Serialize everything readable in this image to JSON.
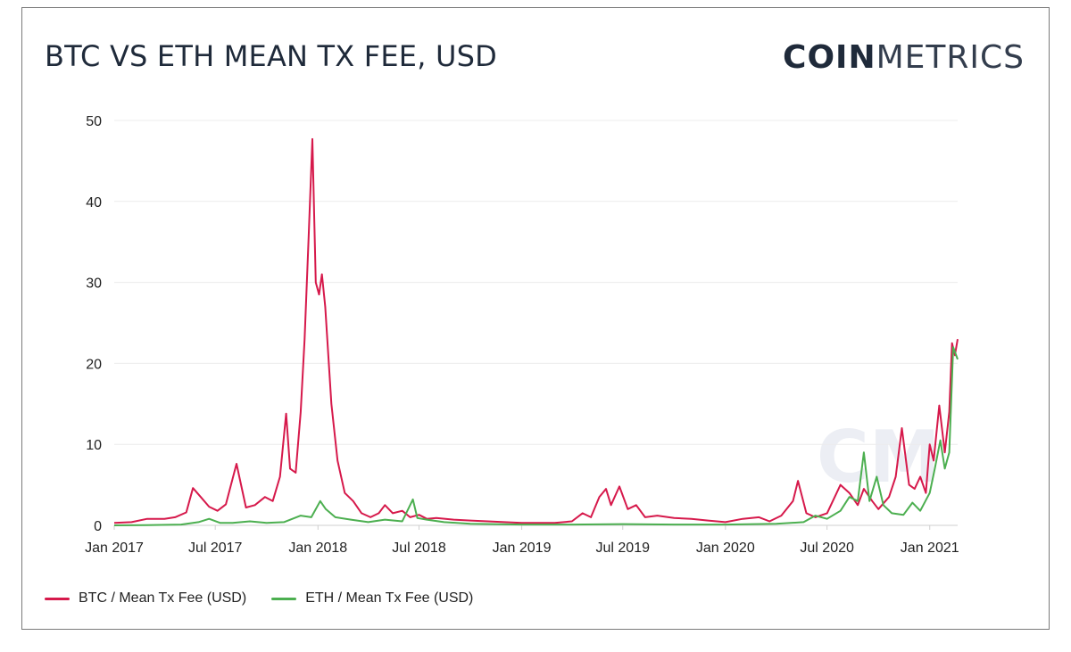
{
  "header": {
    "title": "BTC VS ETH MEAN TX FEE, USD"
  },
  "logo": {
    "bold": "COIN",
    "light": "METRICS"
  },
  "chart_data": {
    "type": "line",
    "title": "BTC VS ETH MEAN TX FEE, USD",
    "xlabel": "",
    "ylabel": "",
    "ylim": [
      0,
      50
    ],
    "xlim": [
      "2017-01-01",
      "2021-02-20"
    ],
    "yticks": [
      0,
      10,
      20,
      30,
      40,
      50
    ],
    "xticks": [
      {
        "date": "2017-01-01",
        "label": "Jan 2017"
      },
      {
        "date": "2017-07-01",
        "label": "Jul 2017"
      },
      {
        "date": "2018-01-01",
        "label": "Jan 2018"
      },
      {
        "date": "2018-07-01",
        "label": "Jul 2018"
      },
      {
        "date": "2019-01-01",
        "label": "Jan 2019"
      },
      {
        "date": "2019-07-01",
        "label": "Jul 2019"
      },
      {
        "date": "2020-01-01",
        "label": "Jan 2020"
      },
      {
        "date": "2020-07-01",
        "label": "Jul 2020"
      },
      {
        "date": "2021-01-01",
        "label": "Jan 2021"
      }
    ],
    "grid": "horizontal",
    "legend_position": "bottom-left",
    "series": [
      {
        "name": "BTC / Mean Tx Fee (USD)",
        "color": "#d6194b",
        "points": [
          [
            "2017-01-01",
            0.3
          ],
          [
            "2017-02-01",
            0.4
          ],
          [
            "2017-03-01",
            0.8
          ],
          [
            "2017-04-01",
            0.8
          ],
          [
            "2017-04-20",
            1.0
          ],
          [
            "2017-05-10",
            1.6
          ],
          [
            "2017-05-22",
            4.6
          ],
          [
            "2017-06-05",
            3.5
          ],
          [
            "2017-06-20",
            2.3
          ],
          [
            "2017-07-05",
            1.8
          ],
          [
            "2017-07-20",
            2.6
          ],
          [
            "2017-08-08",
            7.6
          ],
          [
            "2017-08-25",
            2.2
          ],
          [
            "2017-09-10",
            2.5
          ],
          [
            "2017-09-28",
            3.5
          ],
          [
            "2017-10-12",
            3.0
          ],
          [
            "2017-10-25",
            6.0
          ],
          [
            "2017-11-05",
            13.8
          ],
          [
            "2017-11-12",
            7.0
          ],
          [
            "2017-11-22",
            6.5
          ],
          [
            "2017-12-01",
            14.0
          ],
          [
            "2017-12-08",
            23.0
          ],
          [
            "2017-12-15",
            35.0
          ],
          [
            "2017-12-22",
            47.7
          ],
          [
            "2017-12-28",
            30.0
          ],
          [
            "2018-01-03",
            28.5
          ],
          [
            "2018-01-08",
            31.0
          ],
          [
            "2018-01-14",
            27.0
          ],
          [
            "2018-01-25",
            15.0
          ],
          [
            "2018-02-05",
            8.0
          ],
          [
            "2018-02-18",
            4.0
          ],
          [
            "2018-03-05",
            3.0
          ],
          [
            "2018-03-20",
            1.5
          ],
          [
            "2018-04-05",
            1.0
          ],
          [
            "2018-04-20",
            1.5
          ],
          [
            "2018-05-01",
            2.5
          ],
          [
            "2018-05-15",
            1.5
          ],
          [
            "2018-06-01",
            1.8
          ],
          [
            "2018-06-15",
            1.0
          ],
          [
            "2018-07-01",
            1.3
          ],
          [
            "2018-07-15",
            0.8
          ],
          [
            "2018-08-01",
            0.9
          ],
          [
            "2018-09-01",
            0.7
          ],
          [
            "2018-10-01",
            0.6
          ],
          [
            "2018-11-01",
            0.5
          ],
          [
            "2018-12-01",
            0.4
          ],
          [
            "2019-01-01",
            0.3
          ],
          [
            "2019-02-01",
            0.3
          ],
          [
            "2019-03-01",
            0.3
          ],
          [
            "2019-04-01",
            0.5
          ],
          [
            "2019-04-20",
            1.5
          ],
          [
            "2019-05-05",
            1.0
          ],
          [
            "2019-05-20",
            3.5
          ],
          [
            "2019-06-01",
            4.5
          ],
          [
            "2019-06-10",
            2.5
          ],
          [
            "2019-06-25",
            4.8
          ],
          [
            "2019-07-10",
            2.0
          ],
          [
            "2019-07-25",
            2.5
          ],
          [
            "2019-08-10",
            1.0
          ],
          [
            "2019-09-01",
            1.2
          ],
          [
            "2019-10-01",
            0.9
          ],
          [
            "2019-11-01",
            0.8
          ],
          [
            "2019-12-01",
            0.6
          ],
          [
            "2020-01-01",
            0.4
          ],
          [
            "2020-02-01",
            0.8
          ],
          [
            "2020-03-01",
            1.0
          ],
          [
            "2020-03-20",
            0.5
          ],
          [
            "2020-04-10",
            1.2
          ],
          [
            "2020-05-01",
            3.0
          ],
          [
            "2020-05-10",
            5.5
          ],
          [
            "2020-05-25",
            1.5
          ],
          [
            "2020-06-10",
            1.0
          ],
          [
            "2020-07-01",
            1.5
          ],
          [
            "2020-07-25",
            5.0
          ],
          [
            "2020-08-10",
            4.0
          ],
          [
            "2020-08-25",
            2.5
          ],
          [
            "2020-09-05",
            4.5
          ],
          [
            "2020-09-20",
            3.0
          ],
          [
            "2020-10-01",
            2.0
          ],
          [
            "2020-10-20",
            3.5
          ],
          [
            "2020-11-01",
            6.0
          ],
          [
            "2020-11-12",
            12.0
          ],
          [
            "2020-11-25",
            5.0
          ],
          [
            "2020-12-05",
            4.5
          ],
          [
            "2020-12-15",
            6.0
          ],
          [
            "2020-12-25",
            4.0
          ],
          [
            "2021-01-01",
            10.0
          ],
          [
            "2021-01-08",
            8.0
          ],
          [
            "2021-01-18",
            14.8
          ],
          [
            "2021-01-28",
            9.0
          ],
          [
            "2021-02-05",
            14.0
          ],
          [
            "2021-02-10",
            22.5
          ],
          [
            "2021-02-15",
            21.0
          ],
          [
            "2021-02-20",
            23.0
          ]
        ]
      },
      {
        "name": "ETH / Mean Tx Fee (USD)",
        "color": "#4caf50",
        "points": [
          [
            "2017-01-01",
            0.0
          ],
          [
            "2017-03-01",
            0.02
          ],
          [
            "2017-05-01",
            0.1
          ],
          [
            "2017-06-01",
            0.4
          ],
          [
            "2017-06-20",
            0.8
          ],
          [
            "2017-07-10",
            0.3
          ],
          [
            "2017-08-01",
            0.3
          ],
          [
            "2017-09-01",
            0.5
          ],
          [
            "2017-10-01",
            0.3
          ],
          [
            "2017-11-01",
            0.4
          ],
          [
            "2017-12-01",
            1.2
          ],
          [
            "2017-12-20",
            1.0
          ],
          [
            "2018-01-05",
            3.0
          ],
          [
            "2018-01-15",
            2.0
          ],
          [
            "2018-02-01",
            1.0
          ],
          [
            "2018-03-01",
            0.7
          ],
          [
            "2018-04-01",
            0.4
          ],
          [
            "2018-05-01",
            0.7
          ],
          [
            "2018-06-01",
            0.5
          ],
          [
            "2018-06-20",
            3.2
          ],
          [
            "2018-06-28",
            0.9
          ],
          [
            "2018-07-15",
            0.7
          ],
          [
            "2018-08-15",
            0.4
          ],
          [
            "2018-10-01",
            0.2
          ],
          [
            "2019-01-01",
            0.1
          ],
          [
            "2019-04-01",
            0.1
          ],
          [
            "2019-07-01",
            0.15
          ],
          [
            "2019-10-01",
            0.1
          ],
          [
            "2020-01-01",
            0.1
          ],
          [
            "2020-04-01",
            0.2
          ],
          [
            "2020-05-20",
            0.4
          ],
          [
            "2020-06-10",
            1.2
          ],
          [
            "2020-07-01",
            0.8
          ],
          [
            "2020-07-25",
            1.8
          ],
          [
            "2020-08-10",
            3.5
          ],
          [
            "2020-08-25",
            3.0
          ],
          [
            "2020-09-05",
            9.0
          ],
          [
            "2020-09-15",
            3.0
          ],
          [
            "2020-09-28",
            6.0
          ],
          [
            "2020-10-10",
            2.5
          ],
          [
            "2020-10-25",
            1.5
          ],
          [
            "2020-11-15",
            1.3
          ],
          [
            "2020-12-01",
            2.8
          ],
          [
            "2020-12-15",
            1.8
          ],
          [
            "2021-01-01",
            4.0
          ],
          [
            "2021-01-10",
            7.0
          ],
          [
            "2021-01-20",
            10.5
          ],
          [
            "2021-01-28",
            7.0
          ],
          [
            "2021-02-05",
            9.0
          ],
          [
            "2021-02-12",
            22.0
          ],
          [
            "2021-02-20",
            20.5
          ]
        ]
      }
    ]
  }
}
